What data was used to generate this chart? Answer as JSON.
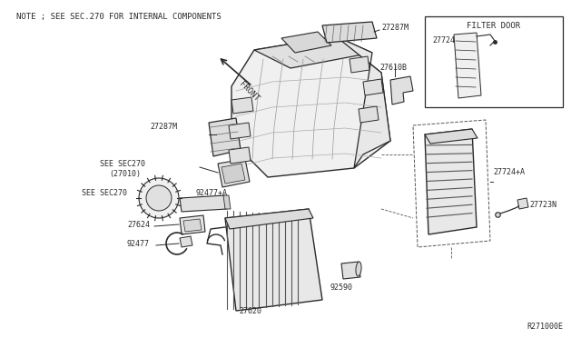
{
  "bg_color": "#ffffff",
  "line_color": "#2a2a2a",
  "note_text": "NOTE ; SEE SEC.270 FOR INTERNAL COMPONENTS",
  "ref_code": "R271000E",
  "filter_door_label": "FILTER DOOR",
  "figsize": [
    6.4,
    3.72
  ],
  "dpi": 100
}
